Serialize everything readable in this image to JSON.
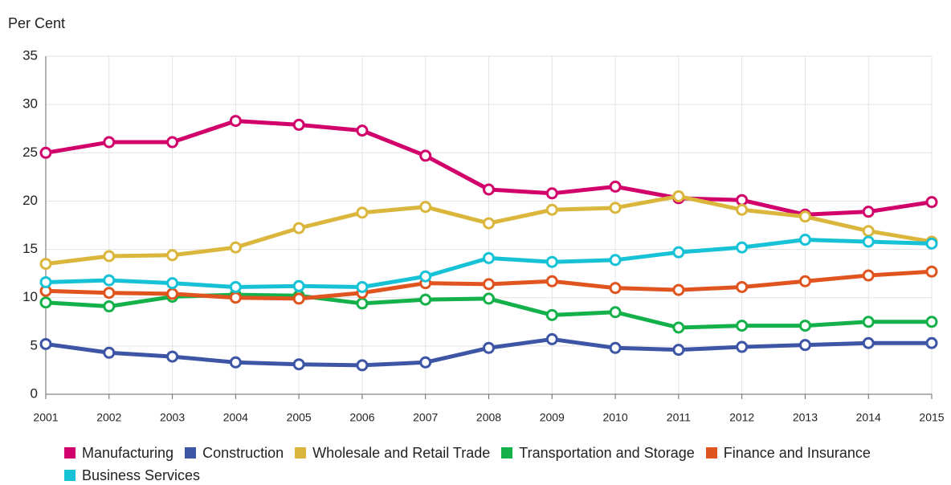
{
  "chart_data": {
    "type": "line",
    "y_label": "Per Cent",
    "x": [
      2001,
      2002,
      2003,
      2004,
      2005,
      2006,
      2007,
      2008,
      2009,
      2010,
      2011,
      2012,
      2013,
      2014,
      2015
    ],
    "xlim": [
      2001,
      2015
    ],
    "xticks": [
      2001,
      2002,
      2003,
      2004,
      2005,
      2006,
      2007,
      2008,
      2009,
      2010,
      2011,
      2012,
      2013,
      2014,
      2015
    ],
    "ylim": [
      0,
      35
    ],
    "yticks": [
      0,
      5,
      10,
      15,
      20,
      25,
      30,
      35
    ],
    "grid": true,
    "legend": "bottom",
    "series": [
      {
        "name": "Manufacturing",
        "color": "#d1006a",
        "values": [
          25,
          26.1,
          26.1,
          28.3,
          27.9,
          27.3,
          24.7,
          21.2,
          20.8,
          21.5,
          20.3,
          20.1,
          18.6,
          18.9,
          19.9
        ]
      },
      {
        "name": "Construction",
        "color": "#3d55a5",
        "values": [
          5.2,
          4.3,
          3.9,
          3.3,
          3.1,
          3.0,
          3.3,
          4.8,
          5.7,
          4.8,
          4.6,
          4.9,
          5.1,
          5.3,
          5.3
        ]
      },
      {
        "name": "Wholesale and Retail Trade",
        "color": "#dbb63d",
        "values": [
          13.5,
          14.3,
          14.4,
          15.2,
          17.2,
          18.8,
          19.4,
          17.7,
          19.1,
          19.3,
          20.5,
          19.1,
          18.4,
          16.9,
          15.8
        ]
      },
      {
        "name": "Transportation and Storage",
        "color": "#14b14b",
        "values": [
          9.5,
          9.1,
          10.1,
          10.3,
          10.2,
          9.4,
          9.8,
          9.9,
          8.2,
          8.5,
          6.9,
          7.1,
          7.1,
          7.5,
          7.5
        ]
      },
      {
        "name": "Finance and Insurance",
        "color": "#e0541f",
        "values": [
          10.7,
          10.5,
          10.4,
          10.0,
          9.9,
          10.5,
          11.5,
          11.4,
          11.7,
          11.0,
          10.8,
          11.1,
          11.7,
          12.3,
          12.7
        ]
      },
      {
        "name": "Business Services",
        "color": "#17c2d6",
        "values": [
          11.6,
          11.8,
          11.5,
          11.1,
          11.2,
          11.1,
          12.2,
          14.1,
          13.7,
          13.9,
          14.7,
          15.2,
          16.0,
          15.8,
          15.6
        ]
      }
    ]
  }
}
